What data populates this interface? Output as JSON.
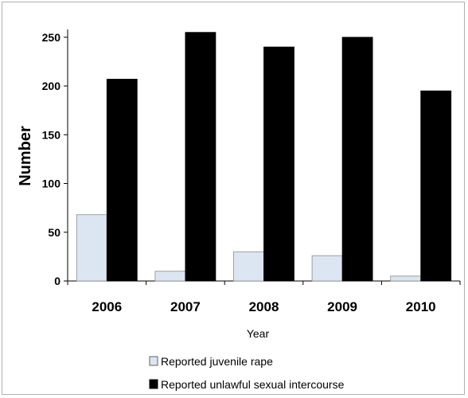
{
  "chart_data": {
    "type": "bar",
    "categories": [
      "2006",
      "2007",
      "2008",
      "2009",
      "2010"
    ],
    "series": [
      {
        "name": "Reported juvenile rape",
        "values": [
          68,
          10,
          30,
          26,
          5
        ],
        "color": "#dce6f2"
      },
      {
        "name": "Reported unlawful sexual intercourse",
        "values": [
          207,
          255,
          240,
          250,
          195
        ],
        "color": "#000000"
      }
    ],
    "title": "",
    "xlabel": "Year",
    "ylabel": "Number",
    "ylim": [
      0,
      260
    ],
    "yticks": [
      "0",
      "50",
      "100",
      "150",
      "200",
      "250"
    ],
    "grid": false,
    "legend_position": "bottom"
  }
}
